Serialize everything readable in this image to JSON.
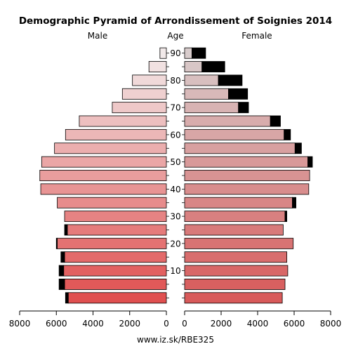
{
  "chart_data": {
    "type": "bar",
    "orientation": "horizontal-pyramid",
    "title": "Demographic Pyramid of Arrondissement of Soignies 2014",
    "left_label": "Male",
    "center_label": "Age",
    "right_label": "Female",
    "footer": "www.iz.sk/RBE325",
    "xlim": [
      0,
      8000
    ],
    "x_ticks": [
      8000,
      6000,
      4000,
      2000,
      0
    ],
    "x_ticks_right": [
      0,
      2000,
      4000,
      6000,
      8000
    ],
    "age_tick_labels": [
      "10",
      "20",
      "30",
      "40",
      "50",
      "60",
      "70",
      "80",
      "90"
    ],
    "age_groups": [
      "0-4",
      "5-9",
      "10-14",
      "15-19",
      "20-24",
      "25-29",
      "30-34",
      "35-39",
      "40-44",
      "45-49",
      "50-54",
      "55-59",
      "60-64",
      "65-69",
      "70-74",
      "75-79",
      "80-84",
      "85-89",
      "90+"
    ],
    "series": [
      {
        "values": [
          5350,
          5550,
          5600,
          5550,
          5950,
          5400,
          5550,
          5950,
          6850,
          6900,
          6800,
          6100,
          5500,
          4750,
          2950,
          2400,
          1850,
          950,
          350
        ]
      },
      {
        "values": [
          150,
          300,
          250,
          200,
          50,
          150,
          0,
          0,
          0,
          0,
          0,
          0,
          0,
          0,
          0,
          0,
          0,
          0,
          0
        ]
      },
      {
        "values": [
          5350,
          5500,
          5650,
          5600,
          5950,
          5400,
          5500,
          5900,
          6800,
          6850,
          6750,
          6050,
          5450,
          4700,
          2950,
          2400,
          1850,
          950,
          400
        ]
      },
      {
        "values": [
          0,
          0,
          0,
          0,
          0,
          0,
          100,
          200,
          0,
          0,
          250,
          350,
          350,
          550,
          550,
          1050,
          1300,
          1250,
          750
        ]
      }
    ],
    "colors": {
      "male_young": "#e05050",
      "male_old": "#f2eaea",
      "female_young": "#d85a5a",
      "female_old": "#d8cccc",
      "excess": "#000000",
      "outline": "#000000",
      "text": "#000000"
    },
    "grid": false,
    "legend": "none"
  }
}
